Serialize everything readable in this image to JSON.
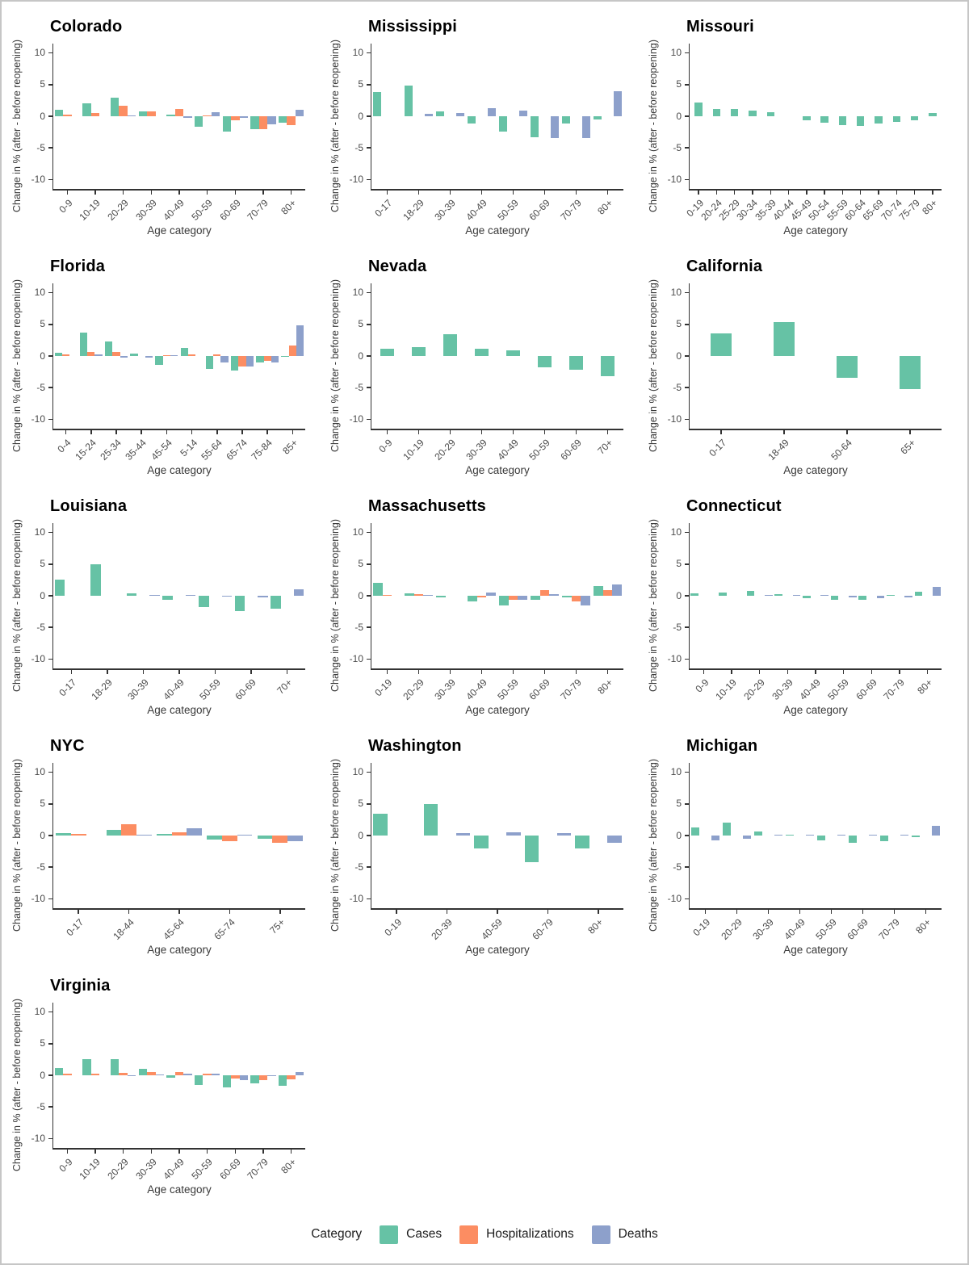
{
  "figure": {
    "y_axis_label": "Change in % (after - before reopening)",
    "x_axis_label": "Age category",
    "y_ticks": [
      10,
      5,
      0,
      -5,
      -10
    ],
    "y_range": [
      -11.5,
      11.5
    ],
    "legend": {
      "title": "Category",
      "entries": [
        {
          "label": "Cases",
          "color": "#66C2A5"
        },
        {
          "label": "Hospitalizations",
          "color": "#FC8D62"
        },
        {
          "label": "Deaths",
          "color": "#8DA0CB"
        }
      ]
    }
  },
  "chart_data": [
    {
      "type": "bar",
      "title": "Colorado",
      "xlabel": "Age category",
      "ylabel": "Change in % (after - before reopening)",
      "ylim": [
        -11.5,
        11.5
      ],
      "categories": [
        "0-9",
        "10-19",
        "20-29",
        "30-39",
        "40-49",
        "50-59",
        "60-69",
        "70-79",
        "80+"
      ],
      "series": [
        {
          "name": "Cases",
          "values": [
            1.0,
            2.1,
            2.9,
            0.8,
            0.3,
            -1.6,
            -2.4,
            -2.0,
            -1.0
          ]
        },
        {
          "name": "Hospitalizations",
          "values": [
            0.3,
            0.5,
            1.6,
            0.8,
            1.2,
            0.1,
            -0.7,
            -2.0,
            -1.4
          ]
        },
        {
          "name": "Deaths",
          "values": [
            null,
            null,
            0.1,
            null,
            -0.2,
            0.6,
            -0.2,
            -1.3,
            1.0
          ]
        }
      ]
    },
    {
      "type": "bar",
      "title": "Mississippi",
      "xlabel": "Age category",
      "ylabel": "Change in % (after - before reopening)",
      "ylim": [
        -11.5,
        11.5
      ],
      "categories": [
        "0-17",
        "18-29",
        "30-39",
        "40-49",
        "50-59",
        "60-69",
        "70-79",
        "80+"
      ],
      "series": [
        {
          "name": "Cases",
          "values": [
            3.8,
            4.8,
            0.8,
            -1.2,
            -2.4,
            -3.3,
            -1.2,
            -0.5
          ]
        },
        {
          "name": "Deaths",
          "values": [
            null,
            0.4,
            0.5,
            1.3,
            0.9,
            -3.5,
            -3.4,
            3.9
          ]
        }
      ]
    },
    {
      "type": "bar",
      "title": "Missouri",
      "xlabel": "Age category",
      "ylabel": "Change in % (after - before reopening)",
      "ylim": [
        -11.5,
        11.5
      ],
      "categories": [
        "0-19",
        "20-24",
        "25-29",
        "30-34",
        "35-39",
        "40-44",
        "45-49",
        "50-54",
        "55-59",
        "60-64",
        "65-69",
        "70-74",
        "75-79",
        "80+"
      ],
      "series": [
        {
          "name": "Cases",
          "values": [
            2.2,
            1.2,
            1.1,
            0.9,
            0.7,
            null,
            -0.6,
            -1.0,
            -1.4,
            -1.5,
            -1.2,
            -0.9,
            -0.6,
            0.5
          ]
        }
      ]
    },
    {
      "type": "bar",
      "title": "Florida",
      "xlabel": "Age category",
      "ylabel": "Change in % (after - before reopening)",
      "ylim": [
        -11.5,
        11.5
      ],
      "categories": [
        "0-4",
        "15-24",
        "25-34",
        "35-44",
        "45-54",
        "5-14",
        "55-64",
        "65-74",
        "75-84",
        "85+"
      ],
      "series": [
        {
          "name": "Cases",
          "values": [
            0.5,
            3.7,
            2.3,
            0.4,
            -1.4,
            1.3,
            -2.1,
            -2.3,
            -1.0,
            -0.15
          ]
        },
        {
          "name": "Hospitalizations",
          "values": [
            0.3,
            0.6,
            0.6,
            null,
            0.1,
            0.3,
            0.2,
            -1.6,
            -0.8,
            1.7
          ]
        },
        {
          "name": "Deaths",
          "values": [
            null,
            0.2,
            -0.3,
            -0.2,
            0.05,
            null,
            -1.0,
            -1.7,
            -1.0,
            4.8
          ]
        }
      ]
    },
    {
      "type": "bar",
      "title": "Nevada",
      "xlabel": "Age category",
      "ylabel": "Change in % (after - before reopening)",
      "ylim": [
        -11.5,
        11.5
      ],
      "categories": [
        "0-9",
        "10-19",
        "20-29",
        "30-39",
        "40-49",
        "50-59",
        "60-69",
        "70+"
      ],
      "series": [
        {
          "name": "Cases",
          "values": [
            1.1,
            1.4,
            3.5,
            1.1,
            0.9,
            -1.8,
            -2.2,
            -3.2
          ]
        }
      ]
    },
    {
      "type": "bar",
      "title": "California",
      "xlabel": "Age category",
      "ylabel": "Change in % (after - before reopening)",
      "ylim": [
        -11.5,
        11.5
      ],
      "categories": [
        "0-17",
        "18-49",
        "50-64",
        "65+"
      ],
      "series": [
        {
          "name": "Cases",
          "values": [
            3.6,
            5.4,
            -3.4,
            -5.3
          ]
        }
      ]
    },
    {
      "type": "bar",
      "title": "Louisiana",
      "xlabel": "Age category",
      "ylabel": "Change in % (after - before reopening)",
      "ylim": [
        -11.5,
        11.5
      ],
      "categories": [
        "0-17",
        "18-29",
        "30-39",
        "40-49",
        "50-59",
        "60-69",
        "70+"
      ],
      "series": [
        {
          "name": "Cases",
          "values": [
            2.6,
            5.0,
            0.4,
            -0.7,
            -1.8,
            -2.4,
            -2.1
          ]
        },
        {
          "name": "Deaths",
          "values": [
            null,
            null,
            0.1,
            0.05,
            -0.15,
            -0.25,
            1.0
          ]
        }
      ]
    },
    {
      "type": "bar",
      "title": "Massachusetts",
      "xlabel": "Age category",
      "ylabel": "Change in % (after - before reopening)",
      "ylim": [
        -11.5,
        11.5
      ],
      "categories": [
        "0-19",
        "20-29",
        "30-39",
        "40-49",
        "50-59",
        "60-69",
        "70-79",
        "80+"
      ],
      "series": [
        {
          "name": "Cases",
          "values": [
            2.1,
            0.4,
            -0.3,
            -0.85,
            -1.5,
            -0.65,
            -0.25,
            1.5
          ]
        },
        {
          "name": "Hospitalizations",
          "values": [
            0.15,
            0.3,
            null,
            -0.25,
            -0.7,
            0.9,
            -0.9,
            0.9
          ]
        },
        {
          "name": "Deaths",
          "values": [
            null,
            0.1,
            null,
            0.5,
            -0.7,
            0.25,
            -1.5,
            1.8
          ]
        }
      ]
    },
    {
      "type": "bar",
      "title": "Connecticut",
      "xlabel": "Age category",
      "ylabel": "Change in % (after - before reopening)",
      "ylim": [
        -11.5,
        11.5
      ],
      "categories": [
        "0-9",
        "10-19",
        "20-29",
        "30-39",
        "40-49",
        "50-59",
        "60-69",
        "70-79",
        "80+"
      ],
      "series": [
        {
          "name": "Cases",
          "values": [
            0.4,
            0.55,
            0.75,
            0.2,
            -0.35,
            -0.65,
            -0.6,
            0.1,
            0.6
          ]
        },
        {
          "name": "Deaths",
          "values": [
            null,
            null,
            0.15,
            0.05,
            0.05,
            -0.25,
            -0.35,
            -0.3,
            1.4
          ]
        }
      ]
    },
    {
      "type": "bar",
      "title": "NYC",
      "xlabel": "Age category",
      "ylabel": "Change in % (after - before reopening)",
      "ylim": [
        -11.5,
        11.5
      ],
      "categories": [
        "0-17",
        "18-44",
        "45-64",
        "65-74",
        "75+"
      ],
      "series": [
        {
          "name": "Cases",
          "values": [
            0.35,
            0.9,
            0.2,
            -0.65,
            -0.55
          ]
        },
        {
          "name": "Hospitalizations",
          "values": [
            0.25,
            1.8,
            0.5,
            -0.9,
            -1.2
          ]
        },
        {
          "name": "Deaths",
          "values": [
            null,
            0.15,
            1.2,
            0.1,
            -0.95
          ]
        }
      ]
    },
    {
      "type": "bar",
      "title": "Washington",
      "xlabel": "Age category",
      "ylabel": "Change in % (after - before reopening)",
      "ylim": [
        -11.5,
        11.5
      ],
      "categories": [
        "0-19",
        "20-39",
        "40-59",
        "60-79",
        "80+"
      ],
      "series": [
        {
          "name": "Cases",
          "values": [
            3.5,
            5.0,
            -2.0,
            -4.2,
            -2.1
          ]
        },
        {
          "name": "Deaths",
          "values": [
            null,
            0.4,
            0.55,
            0.4,
            -1.2
          ]
        }
      ]
    },
    {
      "type": "bar",
      "title": "Michigan",
      "xlabel": "Age category",
      "ylabel": "Change in % (after - before reopening)",
      "ylim": [
        -11.5,
        11.5
      ],
      "categories": [
        "0-19",
        "20-29",
        "30-39",
        "40-49",
        "50-59",
        "60-69",
        "70-79",
        "80+"
      ],
      "series": [
        {
          "name": "Cases",
          "values": [
            1.3,
            2.0,
            0.7,
            0.1,
            -0.8,
            -1.2,
            -0.9,
            -0.3
          ]
        },
        {
          "name": "Deaths",
          "values": [
            -0.75,
            -0.5,
            0.05,
            0.05,
            0.1,
            0.1,
            0.05,
            1.5
          ]
        }
      ]
    },
    {
      "type": "bar",
      "title": "Virginia",
      "xlabel": "Age category",
      "ylabel": "Change in % (after - before reopening)",
      "ylim": [
        -11.5,
        11.5
      ],
      "categories": [
        "0-9",
        "10-19",
        "20-29",
        "30-39",
        "40-49",
        "50-59",
        "60-69",
        "70-79",
        "80+"
      ],
      "series": [
        {
          "name": "Cases",
          "values": [
            1.2,
            2.5,
            2.5,
            1.0,
            -0.4,
            -1.5,
            -1.9,
            -1.3,
            -1.6
          ]
        },
        {
          "name": "Hospitalizations",
          "values": [
            0.2,
            0.25,
            0.35,
            0.5,
            0.5,
            0.2,
            -0.5,
            -0.8,
            -0.7
          ]
        },
        {
          "name": "Deaths",
          "values": [
            null,
            null,
            -0.15,
            0.1,
            0.3,
            0.3,
            -0.8,
            -0.15,
            0.5
          ]
        }
      ]
    }
  ]
}
